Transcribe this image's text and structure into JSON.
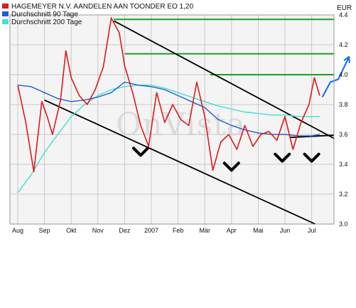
{
  "currency": "EUR",
  "watermark": "OnVista",
  "colors": {
    "price": "#e01818",
    "ma90": "#1c5cd8",
    "ma200": "#40e0d0",
    "trend": "#000000",
    "resistance": "#18a020",
    "forecast": "#1e73e8",
    "grid": "#c8c8c8",
    "plot_bg": "#f4f4f4",
    "frame": "#9a9a9a"
  },
  "legend": [
    {
      "label": "HAGEMEYER N.V. AANDELEN AAN TOONDER EO 1,20",
      "color": "#e01818"
    },
    {
      "label": "Durchschnitt 90 Tage",
      "color": "#1c5cd8"
    },
    {
      "label": "Durchschnitt 200 Tage",
      "color": "#40e0d0"
    }
  ],
  "chart_data": {
    "type": "line",
    "x_tick_labels": [
      "Aug",
      "Sep",
      "Okt",
      "Nov",
      "Dez",
      "2007",
      "Feb",
      "Mär",
      "Apr",
      "Mai",
      "Jun",
      "Jul"
    ],
    "y_tick_labels": [
      "3.0",
      "3.2",
      "3.4",
      "3.6",
      "3.8",
      "4.0",
      "4.2",
      "4.4"
    ],
    "ylim": [
      3.0,
      4.4
    ],
    "grid": true,
    "legend_position": "top-left",
    "series": [
      {
        "name": "HAGEMEYER N.V. AANDELEN AAN TOONDER EO 1,20",
        "color": "#e01818",
        "x": [
          0,
          0.3,
          0.6,
          0.9,
          1.1,
          1.3,
          1.6,
          1.8,
          2.0,
          2.3,
          2.6,
          2.9,
          3.2,
          3.5,
          3.8,
          4.0,
          4.3,
          4.6,
          4.9,
          5.2,
          5.5,
          5.8,
          6.1,
          6.4,
          6.7,
          7.0,
          7.3,
          7.6,
          7.9,
          8.2,
          8.5,
          8.8,
          9.1,
          9.4,
          9.7,
          10.0,
          10.3,
          10.6,
          10.9,
          11.1,
          11.3
        ],
        "values": [
          3.93,
          3.68,
          3.35,
          3.82,
          3.72,
          3.6,
          3.83,
          4.16,
          3.98,
          3.86,
          3.8,
          3.9,
          4.05,
          4.38,
          4.28,
          4.06,
          3.88,
          3.66,
          3.52,
          3.88,
          3.68,
          3.8,
          3.7,
          3.66,
          3.95,
          3.72,
          3.36,
          3.55,
          3.6,
          3.5,
          3.66,
          3.52,
          3.6,
          3.62,
          3.56,
          3.72,
          3.5,
          3.68,
          3.8,
          3.98,
          3.86
        ]
      },
      {
        "name": "Durchschnitt 90 Tage",
        "color": "#1c5cd8",
        "x": [
          0,
          0.5,
          1.0,
          1.5,
          2.0,
          2.5,
          3.0,
          3.5,
          4.0,
          4.5,
          5.0,
          5.5,
          6.0,
          6.5,
          7.0,
          7.5,
          8.0,
          8.5,
          9.0,
          9.5,
          10.0,
          10.5,
          11.0,
          11.3
        ],
        "values": [
          3.93,
          3.92,
          3.88,
          3.84,
          3.82,
          3.83,
          3.85,
          3.88,
          3.95,
          3.93,
          3.92,
          3.9,
          3.86,
          3.82,
          3.78,
          3.7,
          3.66,
          3.63,
          3.61,
          3.6,
          3.6,
          3.59,
          3.59,
          3.6
        ]
      },
      {
        "name": "Durchschnitt 200 Tage",
        "color": "#40e0d0",
        "x": [
          0,
          0.5,
          1.0,
          1.5,
          2.0,
          2.5,
          3.0,
          3.5,
          4.0,
          4.5,
          5.0,
          5.5,
          6.0,
          6.5,
          7.0,
          7.5,
          8.0,
          8.5,
          9.0,
          9.5,
          10.0,
          10.5,
          11.0,
          11.3
        ],
        "values": [
          3.21,
          3.33,
          3.48,
          3.6,
          3.72,
          3.8,
          3.86,
          3.9,
          3.92,
          3.93,
          3.93,
          3.91,
          3.88,
          3.85,
          3.82,
          3.79,
          3.77,
          3.75,
          3.74,
          3.73,
          3.73,
          3.72,
          3.72,
          3.72
        ]
      }
    ]
  },
  "annotations": {
    "trend_lines": [
      {
        "name": "upper-trend-line",
        "x": [
          3.6,
          12.4
        ],
        "y": [
          4.36,
          3.52
        ]
      },
      {
        "name": "lower-trend-line",
        "x": [
          1.0,
          11.5
        ],
        "y": [
          3.83,
          2.97
        ]
      },
      {
        "name": "middle-trend-line",
        "x": [
          10.2,
          12.4
        ],
        "y": [
          3.58,
          3.6
        ]
      }
    ],
    "resistance_lines": [
      {
        "name": "resistance-line-1",
        "x": [
          3.6,
          12.3
        ],
        "y": [
          4.37,
          4.37
        ]
      },
      {
        "name": "resistance-line-2",
        "x": [
          4.0,
          12.3
        ],
        "y": [
          4.14,
          4.14
        ]
      },
      {
        "name": "resistance-line-3",
        "x": [
          7.2,
          12.3
        ],
        "y": [
          4.0,
          4.0
        ]
      }
    ],
    "markers": [
      {
        "name": "bottom-marker-1",
        "x": 4.6,
        "y": 3.47
      },
      {
        "name": "bottom-marker-2",
        "x": 8.0,
        "y": 3.37
      },
      {
        "name": "bottom-marker-3",
        "x": 9.9,
        "y": 3.43
      },
      {
        "name": "bottom-marker-4",
        "x": 11.0,
        "y": 3.43
      }
    ],
    "forecast_arrow": {
      "name": "forecast-arrow",
      "points": [
        {
          "x": 11.4,
          "y": 3.85
        },
        {
          "x": 11.7,
          "y": 3.95
        },
        {
          "x": 12.0,
          "y": 3.97
        },
        {
          "x": 12.4,
          "y": 4.12
        }
      ]
    }
  }
}
